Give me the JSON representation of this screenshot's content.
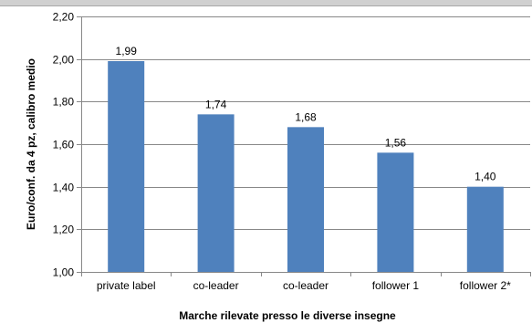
{
  "chart_data": {
    "type": "bar",
    "title": "",
    "categories": [
      "private label",
      "co-leader",
      "co-leader",
      "follower 1",
      "follower 2*"
    ],
    "values": [
      1.99,
      1.74,
      1.68,
      1.56,
      1.4
    ],
    "value_labels": [
      "1,99",
      "1,74",
      "1,68",
      "1,56",
      "1,40"
    ],
    "xlabel": "Marche rilevate presso le diverse insegne",
    "ylabel": "Euro/conf. da 4 pz, calibro medio",
    "ylim": [
      1.0,
      2.2
    ],
    "yticks": [
      1.0,
      1.2,
      1.4,
      1.6,
      1.8,
      2.0,
      2.2
    ],
    "ytick_labels": [
      "1,00",
      "1,20",
      "1,40",
      "1,60",
      "1,80",
      "2,00",
      "2,20"
    ],
    "grid": true,
    "legend": "none",
    "colors": {
      "bar": "#4f81bd",
      "grid": "#888888",
      "axis": "#888888"
    }
  }
}
